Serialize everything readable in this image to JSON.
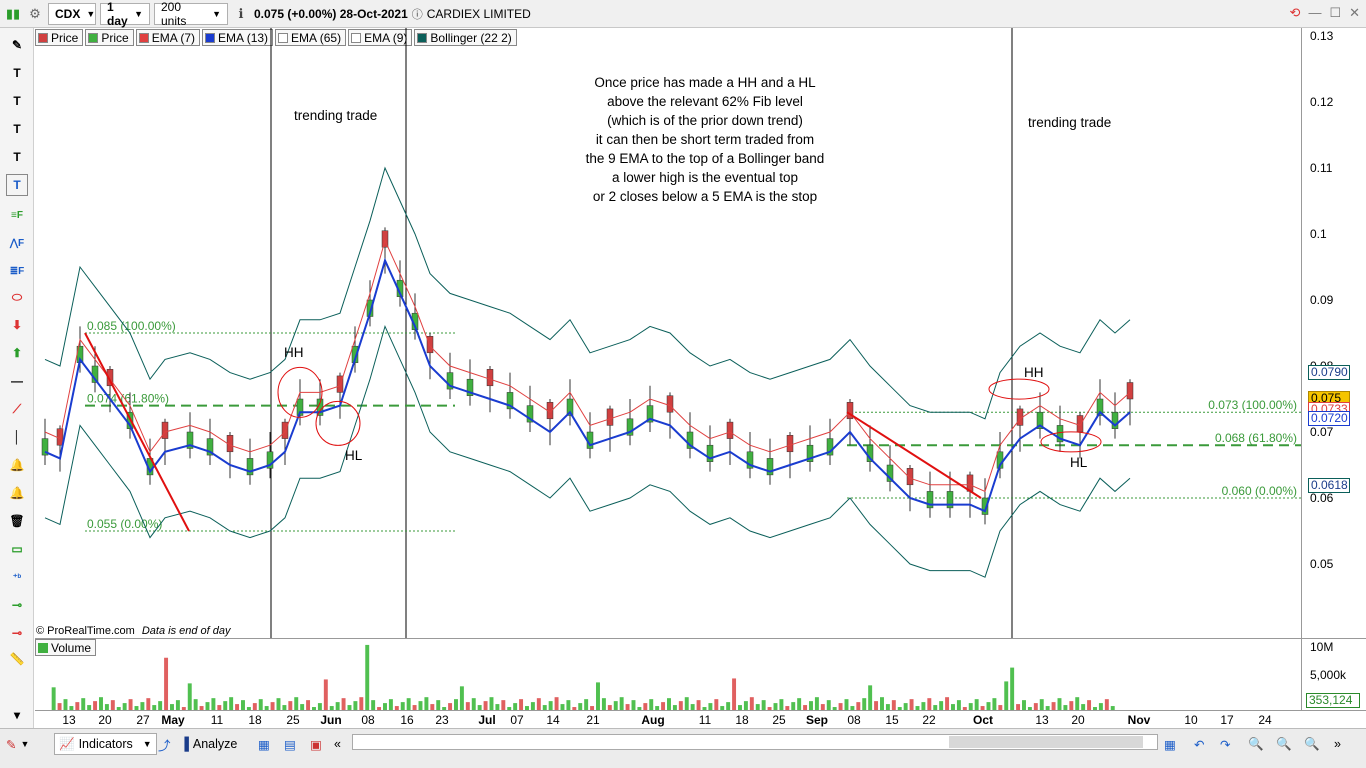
{
  "toolbar": {
    "symbol": "CDX",
    "interval": "1 day",
    "units": "200 units",
    "quote": "0.075 (+0.00%) 28-Oct-2021",
    "company": "CARDIEX LIMITED"
  },
  "legend": [
    {
      "label": "Price",
      "color": "#d04040"
    },
    {
      "label": "Price",
      "color": "#40b040"
    },
    {
      "label": "EMA (7)",
      "color": "#e04040"
    },
    {
      "label": "EMA (13)",
      "color": "#1a3cd0"
    },
    {
      "label": "EMA (65)",
      "color": "#ffffff"
    },
    {
      "label": "EMA (9)",
      "color": "#ffffff"
    },
    {
      "label": "Bollinger (22 2)",
      "color": "#0b5f5a"
    }
  ],
  "annotations": {
    "trend1": "trending trade",
    "trend2": "trending trade",
    "hh1": "HH",
    "hl1": "HL",
    "hh2": "HH",
    "hl2": "HL",
    "note_lines": [
      "Once price has made a HH and a HL",
      "above the relevant 62% Fib level",
      "(which is of  the prior down trend)",
      "it can then be short term traded from",
      "the 9 EMA to the top of a Bollinger band",
      "a lower high is the eventual top",
      "or 2 closes below a 5 EMA is the stop"
    ],
    "fib_left": [
      "0.085 (100.00%)",
      "0.074 (61.80%)",
      "0.055 (0.00%)"
    ],
    "fib_right": [
      "0.073 (100.00%)",
      "0.068 (61.80%)",
      "0.060 (0.00%)"
    ]
  },
  "copyright": "© ProRealTime.com",
  "data_note": "Data is end of day",
  "volume_label": "Volume",
  "y_axis": {
    "ticks": [
      "0.13",
      "0.12",
      "0.11",
      "0.1",
      "0.09",
      "0.08",
      "0.07",
      "0.06",
      "0.05"
    ],
    "badges": [
      {
        "value": "0.0790",
        "bg": "#ffffff",
        "fg": "#1a3c8a",
        "border": "#0b5f5a"
      },
      {
        "value": "0.075",
        "bg": "#f5c400",
        "fg": "#000000",
        "border": "#b08800"
      },
      {
        "value": "0.0733",
        "bg": "#ffffff",
        "fg": "#e04040",
        "border": "#e04040"
      },
      {
        "value": "0.0720",
        "bg": "#ffffff",
        "fg": "#1a3cd0",
        "border": "#1a3cd0"
      },
      {
        "value": "0.0618",
        "bg": "#ffffff",
        "fg": "#1a3c8a",
        "border": "#0b5f5a"
      }
    ]
  },
  "volume_axis": {
    "ticks": [
      "10M",
      "5,000k"
    ],
    "badge": "353,124"
  },
  "x_axis": [
    "13",
    "20",
    "27",
    "May",
    "11",
    "18",
    "25",
    "Jun",
    "08",
    "16",
    "23",
    "Jul",
    "07",
    "14",
    "21",
    "Aug",
    "11",
    "18",
    "25",
    "Sep",
    "08",
    "15",
    "22",
    "Oct",
    "13",
    "20",
    "Nov",
    "10",
    "17",
    "24"
  ],
  "bottom": {
    "indicators": "Indicators",
    "analyze": "Analyze"
  },
  "chart_data": {
    "type": "candlestick",
    "title": "CDX 1 day",
    "ylim": [
      0.04,
      0.133
    ],
    "fib_left": {
      "100": 0.085,
      "61.8": 0.074,
      "0": 0.055
    },
    "fib_right": {
      "100": 0.073,
      "61.8": 0.068,
      "0": 0.06
    },
    "last_close": 0.075,
    "ema7_last": 0.0733,
    "ema13_last": 0.072,
    "bollinger_upper_last": 0.079,
    "bollinger_lower_last": 0.0618
  }
}
